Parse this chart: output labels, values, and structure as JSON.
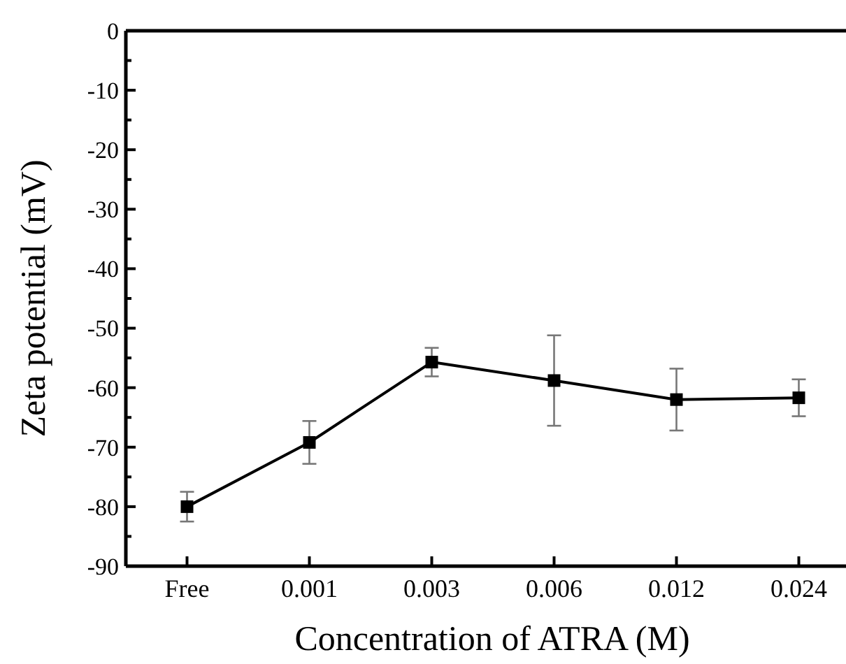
{
  "chart_data": {
    "type": "line",
    "xlabel": "Concentration of ATRA (M)",
    "ylabel": "Zeta potential (mV)",
    "categories": [
      "Free",
      "0.001",
      "0.003",
      "0.006",
      "0.012",
      "0.024"
    ],
    "series": [
      {
        "color": "#000000",
        "values": [
          -80.0,
          -69.2,
          -55.7,
          -58.8,
          -62.0,
          -61.7
        ],
        "errors": [
          2.5,
          3.6,
          2.4,
          7.6,
          5.2,
          3.1
        ]
      }
    ],
    "ylim": [
      -90,
      0
    ],
    "yticks": [
      -90,
      -80,
      -70,
      -60,
      -50,
      -40,
      -30,
      -20,
      -10,
      0
    ],
    "marker": "square",
    "line_style": "solid",
    "grid": false
  }
}
